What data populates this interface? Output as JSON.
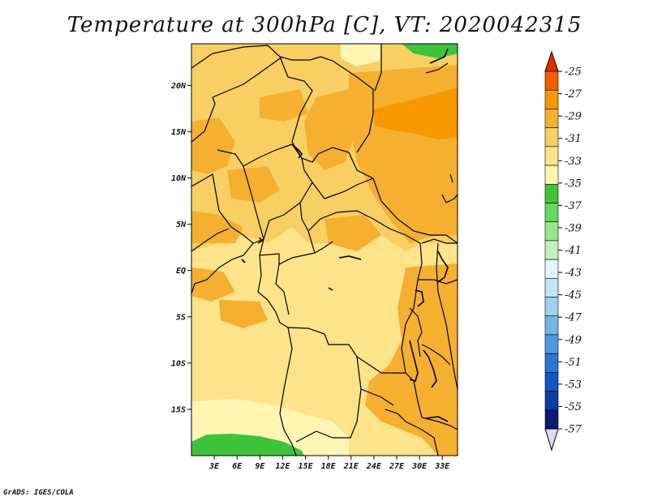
{
  "title": "Temperature at 300hPa [C], VT: 2020042315",
  "credit": "GrADS: IGES/COLA",
  "map": {
    "latitude_labels": [
      "20N",
      "15N",
      "10N",
      "5N",
      "EQ",
      "5S",
      "10S",
      "15S"
    ],
    "latitudes": [
      20,
      15,
      10,
      5,
      0,
      -5,
      -10,
      -15
    ],
    "longitude_labels": [
      "3E",
      "6E",
      "9E",
      "12E",
      "15E",
      "18E",
      "21E",
      "24E",
      "27E",
      "30E",
      "33E"
    ],
    "longitudes": [
      3,
      6,
      9,
      12,
      15,
      18,
      21,
      24,
      27,
      30,
      33
    ],
    "lon_range": [
      0,
      35
    ],
    "lat_range": [
      -20,
      24.5
    ]
  },
  "colorbar": {
    "labels": [
      "-25",
      "-27",
      "-29",
      "-31",
      "-33",
      "-35",
      "-37",
      "-39",
      "-41",
      "-43",
      "-45",
      "-47",
      "-49",
      "-51",
      "-53",
      "-55",
      "-57"
    ],
    "colors": [
      "#e62d00",
      "#f06000",
      "#f79800",
      "#f5b030",
      "#f8cf62",
      "#fde38a",
      "#fff6b4",
      "#3dc43b",
      "#66d85e",
      "#99e58a",
      "#c2f0bc",
      "#e3f7f7",
      "#bfe6f5",
      "#9cd1f0",
      "#74b5e8",
      "#4f98e0",
      "#2b76d2",
      "#1556c1",
      "#0b3ea3",
      "#0a1b73",
      "#dcdcf0"
    ]
  },
  "legend_colors": {
    "background_field": "#fde38a",
    "warm_field": "#f8cf62",
    "warmer_field": "#f5b030",
    "warmest_field": "#f79800",
    "cool_field": "#fff6b4",
    "green_field": "#3dc43b",
    "border_line": "#000000"
  }
}
